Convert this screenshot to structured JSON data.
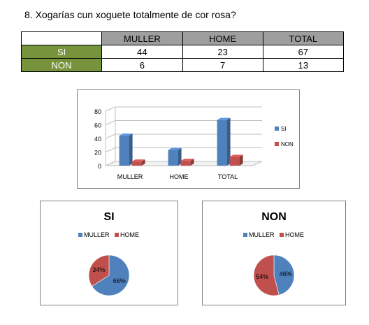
{
  "question": "8. Xogarías cun xoguete totalmente de cor rosa?",
  "table": {
    "headers": [
      "MULLER",
      "HOME",
      "TOTAL"
    ],
    "rows": [
      {
        "label": "SI",
        "values": [
          "44",
          "23",
          "67"
        ]
      },
      {
        "label": "NON",
        "values": [
          "6",
          "7",
          "13"
        ]
      }
    ]
  },
  "colors": {
    "blue": "#4f81bd",
    "red": "#c0504d",
    "green": "#77933c",
    "gray": "#9e9e9e"
  },
  "chart_data": [
    {
      "type": "bar",
      "categories": [
        "MULLER",
        "HOME",
        "TOTAL"
      ],
      "series": [
        {
          "name": "SI",
          "values": [
            44,
            23,
            67
          ]
        },
        {
          "name": "NON",
          "values": [
            6,
            7,
            13
          ]
        }
      ],
      "ylim": [
        0,
        80
      ],
      "yticks": [
        "0",
        "20",
        "40",
        "60",
        "80"
      ],
      "grid": true,
      "legend": "right"
    },
    {
      "type": "pie",
      "title": "SI",
      "labels": [
        "MULLER",
        "HOME"
      ],
      "values": [
        66,
        34
      ],
      "data_labels": [
        "66%",
        "34%"
      ],
      "legend": "top"
    },
    {
      "type": "pie",
      "title": "NON",
      "labels": [
        "MULLER",
        "HOME"
      ],
      "values": [
        46,
        54
      ],
      "data_labels": [
        "46%",
        "54%"
      ],
      "legend": "top"
    }
  ]
}
